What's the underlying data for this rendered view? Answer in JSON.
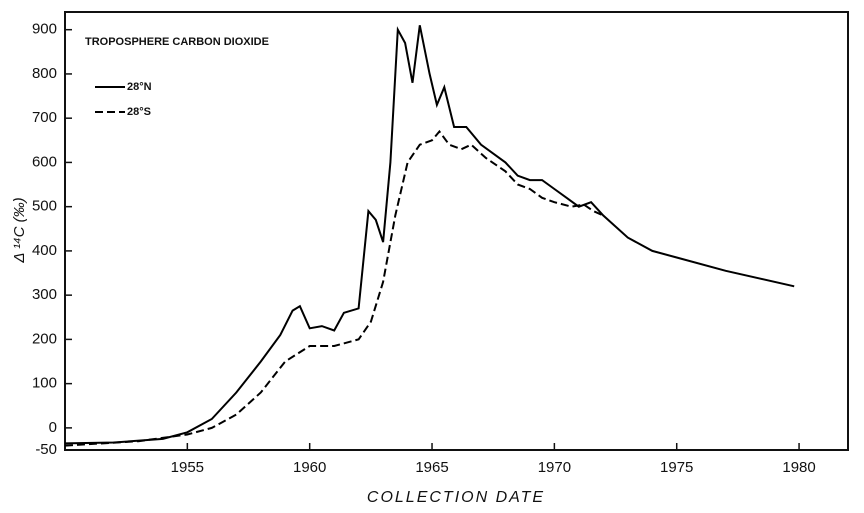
{
  "chart_data": {
    "type": "line",
    "title": "TROPOSPHERE CARBON DIOXIDE",
    "xlabel": "COLLECTION DATE",
    "ylabel": "Δ ¹⁴C (‰)",
    "xlim": [
      1950,
      1982
    ],
    "xticks": [
      1955,
      1960,
      1965,
      1970,
      1975,
      1980
    ],
    "ylim": [
      -50,
      940
    ],
    "yticks": [
      -50,
      0,
      100,
      200,
      300,
      400,
      500,
      600,
      700,
      800,
      900
    ],
    "series": [
      {
        "name": "28°N",
        "color": "#000000",
        "dash": "solid",
        "x": [
          1950,
          1952,
          1954,
          1955,
          1956,
          1957,
          1958,
          1958.8,
          1959.3,
          1959.6,
          1960,
          1960.5,
          1961,
          1961.4,
          1962,
          1962.4,
          1962.7,
          1963,
          1963.3,
          1963.6,
          1963.9,
          1964.2,
          1964.5,
          1964.9,
          1965.2,
          1965.5,
          1965.9,
          1966.4,
          1967,
          1968,
          1968.5,
          1969,
          1969.5,
          1970,
          1970.5,
          1971,
          1971.5,
          1972,
          1973,
          1974,
          1975,
          1977,
          1979.8
        ],
        "values": [
          -35,
          -33,
          -25,
          -10,
          20,
          80,
          150,
          210,
          265,
          275,
          225,
          230,
          220,
          260,
          270,
          490,
          470,
          420,
          600,
          900,
          870,
          780,
          910,
          800,
          730,
          770,
          680,
          680,
          640,
          600,
          570,
          560,
          560,
          540,
          520,
          500,
          510,
          480,
          430,
          400,
          385,
          355,
          320
        ]
      },
      {
        "name": "28°S",
        "color": "#000000",
        "dash": "dashed",
        "x": [
          1950,
          1953,
          1955,
          1956,
          1957,
          1958,
          1959,
          1960,
          1961,
          1962,
          1962.5,
          1963,
          1963.5,
          1964,
          1964.5,
          1965,
          1965.3,
          1965.7,
          1966.2,
          1966.6,
          1967.2,
          1968,
          1968.5,
          1969,
          1969.5,
          1970,
          1970.7,
          1971.2,
          1971.6,
          1972
        ],
        "values": [
          -40,
          -30,
          -15,
          0,
          30,
          80,
          150,
          185,
          185,
          200,
          240,
          330,
          480,
          600,
          640,
          650,
          670,
          640,
          630,
          640,
          610,
          580,
          550,
          540,
          520,
          510,
          500,
          505,
          490,
          480
        ]
      }
    ]
  }
}
